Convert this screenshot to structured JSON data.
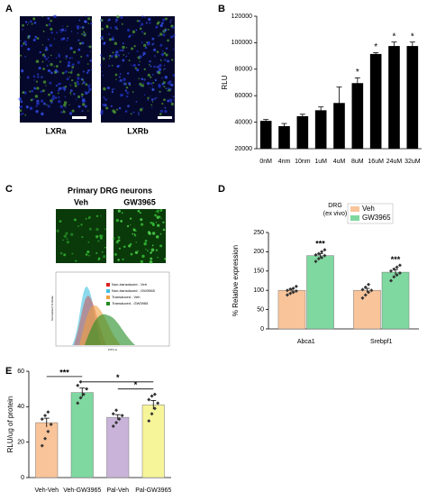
{
  "panel_letters": [
    "A",
    "B",
    "C",
    "D",
    "E"
  ],
  "panel_a": {
    "labels": [
      "LXRa",
      "LXRb"
    ]
  },
  "panel_c": {
    "title": "Primary DRG neurons",
    "labels": [
      "Veh",
      "GW3965"
    ],
    "y_label": "Normalized To Mode",
    "x_label": "FITC-A",
    "legend": [
      {
        "name": "Non-transduced - Veh",
        "color": "#e02020"
      },
      {
        "name": "Non-transduced - GW3965",
        "color": "#40c0e0"
      },
      {
        "name": "Transduced - Veh",
        "color": "#f0a040"
      },
      {
        "name": "Transduced - GW3965",
        "color": "#208a20"
      }
    ]
  },
  "chart_data": [
    {
      "type": "bar",
      "y_label": "RLU",
      "color": "#000000",
      "categories": [
        "0nM",
        "4nm",
        "10nm",
        "1uM",
        "4uM",
        "8uM",
        "16uM",
        "24uM",
        "32uM"
      ],
      "values": [
        41000,
        37000,
        44500,
        49000,
        54500,
        69500,
        91500,
        97500,
        97500
      ],
      "errors": [
        1000,
        2000,
        1500,
        2500,
        12000,
        4000,
        1000,
        3000,
        3000
      ],
      "annotations": [
        null,
        null,
        null,
        null,
        null,
        "*",
        "*",
        "*",
        "*"
      ],
      "ylim": [
        20000,
        120000
      ],
      "yticks": [
        20000,
        40000,
        60000,
        80000,
        100000,
        120000
      ]
    },
    {
      "type": "grouped_bar",
      "title": "DRG",
      "subtitle": "(ex vivo)",
      "y_label": "% Relative expression",
      "categories": [
        "Abca1",
        "Srebpf1"
      ],
      "series": [
        {
          "name": "Veh",
          "color": "#f9c49a",
          "values": [
            100,
            100
          ],
          "errors": [
            4,
            5
          ],
          "points": [
            [
              88,
              92,
              95,
              98,
              100,
              103,
              105,
              110
            ],
            [
              80,
              88,
              95,
              100,
              102,
              108,
              115
            ]
          ],
          "annotations": [
            null,
            null
          ]
        },
        {
          "name": "GW3965",
          "color": "#7fd8a0",
          "values": [
            190,
            147
          ],
          "errors": [
            5,
            7
          ],
          "points": [
            [
              175,
              182,
              185,
              190,
              192,
              195,
              200,
              205
            ],
            [
              125,
              135,
              140,
              145,
              150,
              155,
              160,
              165
            ]
          ],
          "annotations": [
            "***",
            "***"
          ]
        }
      ],
      "ylim": [
        0,
        250
      ],
      "yticks": [
        0,
        50,
        100,
        150,
        200,
        250
      ],
      "legend": "upper right"
    },
    {
      "type": "bar",
      "y_label": "RLU/ug of protein",
      "categories": [
        "Veh-Veh",
        "Veh-GW3965",
        "Pal-Veh",
        "Pal-GW3965"
      ],
      "colors": [
        "#f9c49a",
        "#7fd8a0",
        "#c9b3d9",
        "#f7f59a"
      ],
      "values": [
        31,
        48,
        34,
        41
      ],
      "errors": [
        2.5,
        2.5,
        1.5,
        2.5
      ],
      "points": [
        [
          18,
          22,
          26,
          30,
          33,
          35,
          37
        ],
        [
          42,
          45,
          47,
          50,
          52,
          54
        ],
        [
          29,
          31,
          33,
          35,
          36,
          38
        ],
        [
          32,
          36,
          39,
          42,
          44,
          46,
          47
        ]
      ],
      "comparisons": [
        "***",
        "*",
        "*"
      ],
      "ylim": [
        0,
        60
      ],
      "yticks": [
        0,
        20,
        40,
        60
      ]
    }
  ]
}
